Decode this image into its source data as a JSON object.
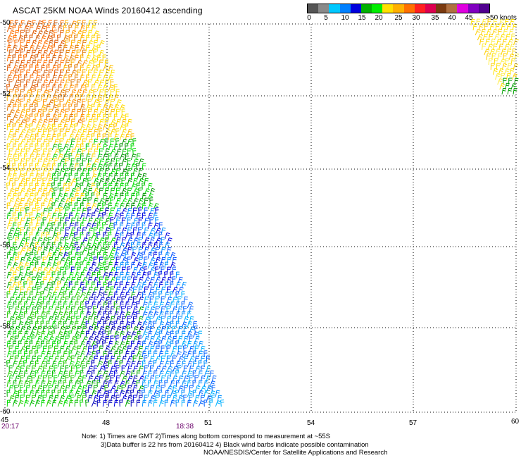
{
  "title": "ASCAT 25KM NOAA Winds 20160412 ascending",
  "legend": {
    "colors": [
      "#555555",
      "#8a8a8a",
      "#00c8ff",
      "#0080ff",
      "#0000dd",
      "#00b000",
      "#00ee00",
      "#ffe000",
      "#ffb000",
      "#ff7000",
      "#ff2020",
      "#dd0050",
      "#7a3a10",
      "#b07040",
      "#e000e0",
      "#8000c0",
      "#500090"
    ],
    "labels": [
      "0",
      "5",
      "10",
      "15",
      "20",
      "25",
      "30",
      "35",
      "40",
      "45",
      ">50 knots"
    ]
  },
  "axes": {
    "x_labels": [
      "45",
      "48",
      "51",
      "54",
      "57",
      "60"
    ],
    "y_labels": [
      "-50",
      "-52",
      "-54",
      "-56",
      "-58",
      "-60"
    ]
  },
  "times": {
    "left": "20:17",
    "right": "18:38"
  },
  "notes": [
    "Note: 1) Times are GMT 2)Times along bottom correspond to measurement at ~55S",
    "3)Data buffer is 22 hrs from 20160412 4) Black wind barbs indicate possible contamination",
    "NOAA/NESDIS/Center for Satellite Applications and Research"
  ]
}
